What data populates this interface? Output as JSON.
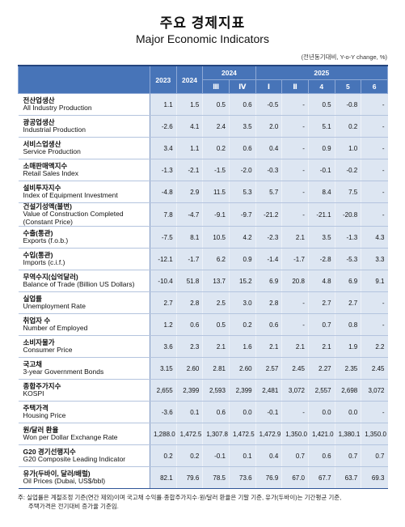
{
  "header": {
    "title": "주요 경제지표",
    "subtitle": "Major Economic Indicators",
    "unit": "(전년동기대비, Y-o-Y change, %)"
  },
  "table": {
    "years": [
      "2023",
      "2024"
    ],
    "periods": [
      {
        "year": "2024",
        "quarters": [
          "Ⅲ",
          "Ⅳ"
        ]
      },
      {
        "year": "2025",
        "quarters": [
          "Ⅰ",
          "Ⅱ",
          "4",
          "5",
          "6"
        ]
      }
    ],
    "groups": [
      [
        {
          "ko": "전산업생산",
          "en": "All Industry Production",
          "values": [
            "1.1",
            "1.5",
            "0.5",
            "0.6",
            "-0.5",
            "-",
            "0.5",
            "-0.8",
            "-"
          ]
        },
        {
          "ko": "광공업생산",
          "en": "Industrial Production",
          "values": [
            "-2.6",
            "4.1",
            "2.4",
            "3.5",
            "2.0",
            "-",
            "5.1",
            "0.2",
            "-"
          ]
        },
        {
          "ko": "서비스업생산",
          "en": "Service Production",
          "values": [
            "3.4",
            "1.1",
            "0.2",
            "0.6",
            "0.4",
            "-",
            "0.9",
            "1.0",
            "-"
          ]
        },
        {
          "ko": "소매판매액지수",
          "en": "Retail Sales Index",
          "values": [
            "-1.3",
            "-2.1",
            "-1.5",
            "-2.0",
            "-0.3",
            "-",
            "-0.1",
            "-0.2",
            "-"
          ]
        },
        {
          "ko": "설비투자지수",
          "en": "Index of Equipment Investment",
          "values": [
            "-4.8",
            "2.9",
            "11.5",
            "5.3",
            "5.7",
            "-",
            "8.4",
            "7.5",
            "-"
          ]
        },
        {
          "ko": "건설기성액(불변)",
          "en": "Value of Construction Completed (Constant Price)",
          "values": [
            "7.8",
            "-4.7",
            "-9.1",
            "-9.7",
            "-21.2",
            "-",
            "-21.1",
            "-20.8",
            "-"
          ]
        }
      ],
      [
        {
          "ko": "수출(통관)",
          "en": "Exports (f.o.b.)",
          "values": [
            "-7.5",
            "8.1",
            "10.5",
            "4.2",
            "-2.3",
            "2.1",
            "3.5",
            "-1.3",
            "4.3"
          ]
        },
        {
          "ko": "수입(통관)",
          "en": "Imports (c.i.f.)",
          "values": [
            "-12.1",
            "-1.7",
            "6.2",
            "0.9",
            "-1.4",
            "-1.7",
            "-2.8",
            "-5.3",
            "3.3"
          ]
        },
        {
          "ko": "무역수지(십억달러)",
          "en": "Balance of Trade (Billion US Dollars)",
          "values": [
            "-10.4",
            "51.8",
            "13.7",
            "15.2",
            "6.9",
            "20.8",
            "4.8",
            "6.9",
            "9.1"
          ]
        }
      ],
      [
        {
          "ko": "실업률",
          "en": "Unemployment Rate",
          "values": [
            "2.7",
            "2.8",
            "2.5",
            "3.0",
            "2.8",
            "-",
            "2.7",
            "2.7",
            "-"
          ]
        },
        {
          "ko": "취업자 수",
          "en": "Number of Employed",
          "values": [
            "1.2",
            "0.6",
            "0.5",
            "0.2",
            "0.6",
            "-",
            "0.7",
            "0.8",
            "-"
          ]
        }
      ],
      [
        {
          "ko": "소비자물가",
          "en": "Consumer Price",
          "values": [
            "3.6",
            "2.3",
            "2.1",
            "1.6",
            "2.1",
            "2.1",
            "2.1",
            "1.9",
            "2.2"
          ]
        }
      ],
      [
        {
          "ko": "국고채",
          "en": "3-year Government Bonds",
          "values": [
            "3.15",
            "2.60",
            "2.81",
            "2.60",
            "2.57",
            "2.45",
            "2.27",
            "2.35",
            "2.45"
          ]
        },
        {
          "ko": "종합주가지수",
          "en": "KOSPI",
          "values": [
            "2,655",
            "2,399",
            "2,593",
            "2,399",
            "2,481",
            "3,072",
            "2,557",
            "2,698",
            "3,072"
          ]
        }
      ],
      [
        {
          "ko": "주택가격",
          "en": "Housing Price",
          "values": [
            "-3.6",
            "0.1",
            "0.6",
            "0.0",
            "-0.1",
            "-",
            "0.0",
            "0.0",
            "-"
          ]
        }
      ],
      [
        {
          "ko": "원/달러 환율",
          "en": "Won per Dollar Exchange Rate",
          "values": [
            "1,288.0",
            "1,472.5",
            "1,307.8",
            "1,472.5",
            "1,472.9",
            "1,350.0",
            "1,421.0",
            "1,380.1",
            "1,350.0"
          ]
        },
        {
          "ko": "G20 경기선행지수",
          "en": "G20 Composite Leading Indicator",
          "values": [
            "0.2",
            "0.2",
            "-0.1",
            "0.1",
            "0.4",
            "0.7",
            "0.6",
            "0.7",
            "0.7"
          ]
        },
        {
          "ko": "유가(두바이, 달러/배럴)",
          "en": "Oil Prices (Dubai, US$/bbl)",
          "values": [
            "82.1",
            "79.6",
            "78.5",
            "73.6",
            "76.9",
            "67.0",
            "67.7",
            "63.7",
            "69.3"
          ]
        }
      ]
    ]
  },
  "note": [
    "주: 실업률은 계절조정 기준(연간 제외)이며 국고채 수익률·종합주가지수·원/달러 환율은 기말 기준, 유가(두바이)는 기간평균 기준,",
    "주택가격은 전기대비 증가율 기준임."
  ]
}
